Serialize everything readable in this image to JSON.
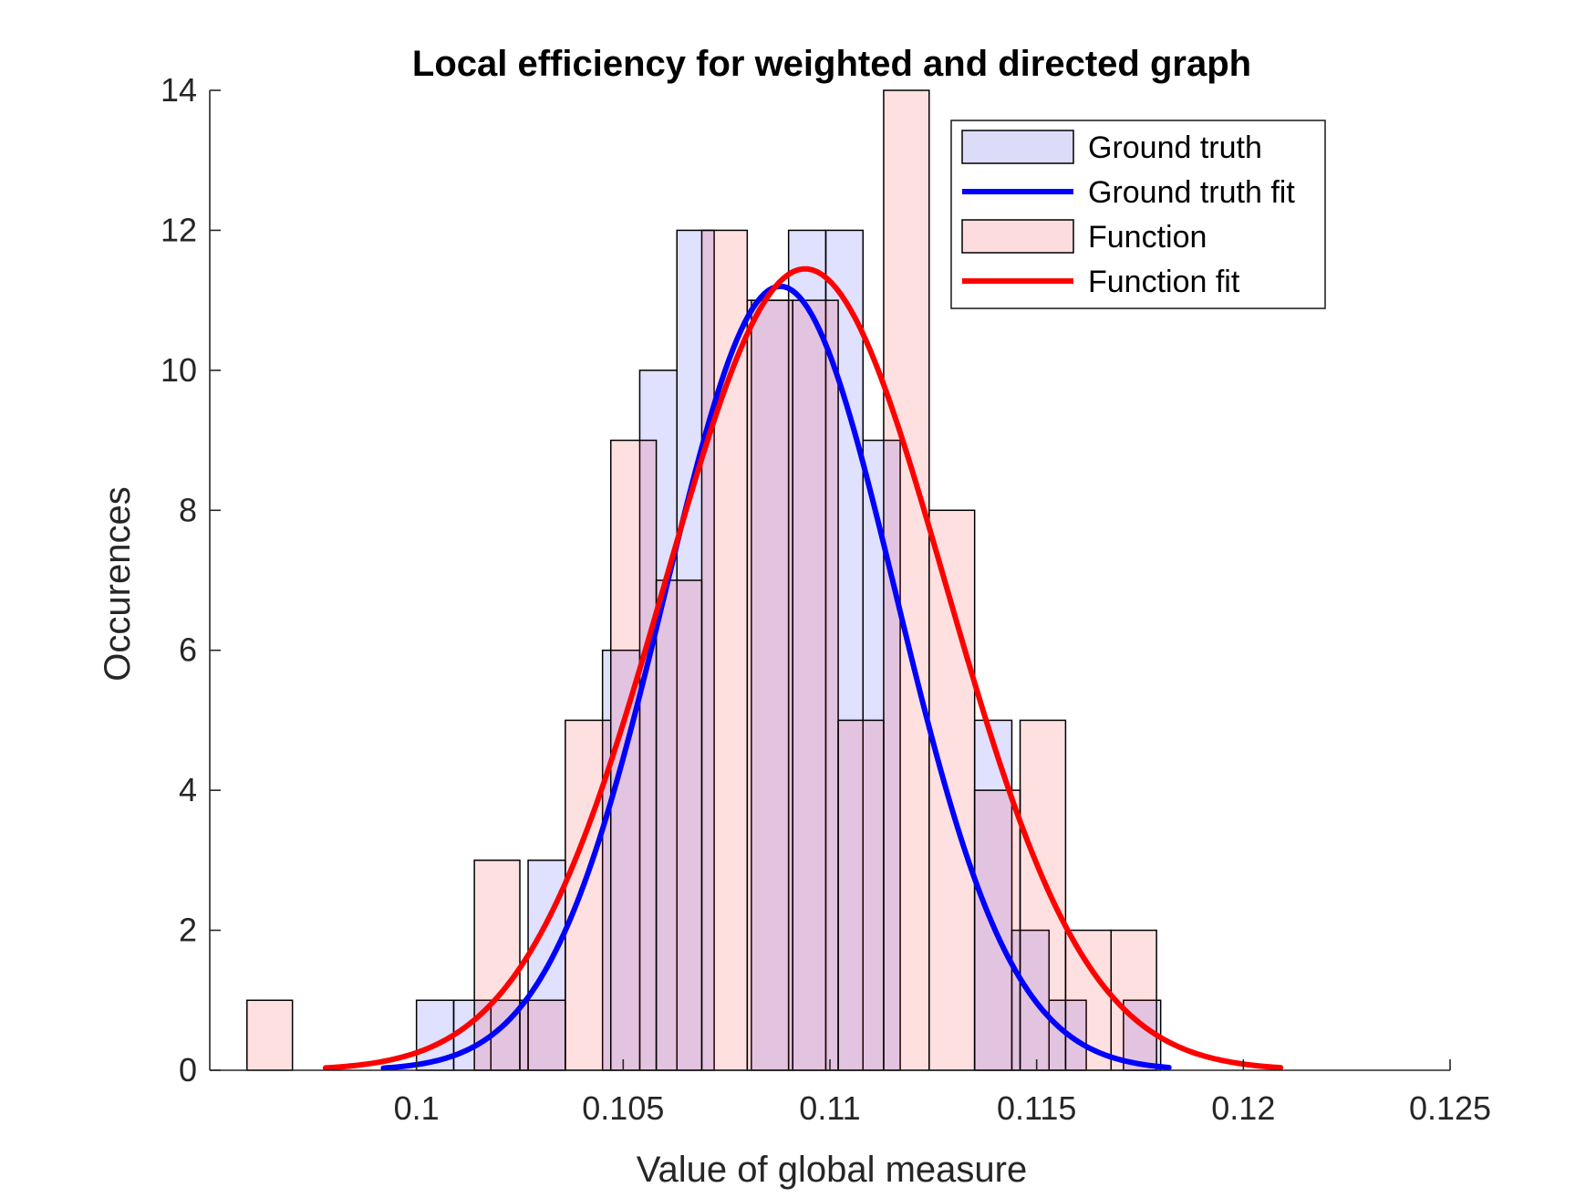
{
  "chart_data": {
    "type": "bar",
    "title": "Local efficiency for weighted and directed graph",
    "xlabel": "Value of global measure",
    "ylabel": "Occurences",
    "xlim": [
      0.095,
      0.125
    ],
    "ylim": [
      0,
      14
    ],
    "xticks": [
      0.1,
      0.105,
      0.11,
      0.115,
      0.12,
      0.125
    ],
    "xtick_labels": [
      "0.1",
      "0.105",
      "0.11",
      "0.115",
      "0.12",
      "0.125"
    ],
    "yticks": [
      0,
      2,
      4,
      6,
      8,
      10,
      12,
      14
    ],
    "ytick_labels": [
      "0",
      "2",
      "4",
      "6",
      "8",
      "10",
      "12",
      "14"
    ],
    "grid": false,
    "legend_position": "top-right",
    "legend": [
      {
        "label": "Ground truth",
        "kind": "patch",
        "color": "#dcdcf8"
      },
      {
        "label": "Ground truth fit",
        "kind": "line",
        "color": "#0000ff"
      },
      {
        "label": "Function",
        "kind": "patch",
        "color": "#fddcdf"
      },
      {
        "label": "Function fit",
        "kind": "line",
        "color": "#ff0000"
      }
    ],
    "histograms": [
      {
        "name": "Ground truth",
        "color": "#0000ff",
        "opacity": 0.12,
        "bin_edges": [
          0.1,
          0.1009,
          0.1018,
          0.1027,
          0.1036,
          0.1045,
          0.1054,
          0.1063,
          0.1072,
          0.1081,
          0.109,
          0.1099,
          0.1108,
          0.1117,
          0.1126,
          0.1135,
          0.1144,
          0.1153,
          0.1162,
          0.1171,
          0.118
        ],
        "counts": [
          1,
          1,
          1,
          3,
          0,
          6,
          10,
          12,
          0,
          11,
          12,
          12,
          9,
          0,
          0,
          5,
          2,
          1,
          0,
          1
        ]
      },
      {
        "name": "Function",
        "color": "#ff0000",
        "opacity": 0.12,
        "bin_edges": [
          0.0959,
          0.097,
          0.0981,
          0.0992,
          0.1003,
          0.1014,
          0.1025,
          0.1036,
          0.1047,
          0.1058,
          0.1069,
          0.108,
          0.1091,
          0.1102,
          0.1113,
          0.1124,
          0.1135,
          0.1146,
          0.1157,
          0.1168,
          0.1179
        ],
        "counts": [
          1,
          0,
          0,
          0,
          0,
          3,
          1,
          5,
          9,
          7,
          12,
          11,
          11,
          5,
          14,
          8,
          4,
          5,
          2,
          2
        ]
      }
    ],
    "series": [
      {
        "name": "Ground truth fit",
        "color": "#0000ff",
        "mean": 0.1088,
        "sd": 0.0028,
        "peak": 11.2,
        "x_range": [
          0.0992,
          0.1182
        ]
      },
      {
        "name": "Function fit",
        "color": "#ff0000",
        "mean": 0.1094,
        "sd": 0.0034,
        "peak": 11.45,
        "x_range": [
          0.0978,
          0.1209
        ]
      }
    ]
  }
}
